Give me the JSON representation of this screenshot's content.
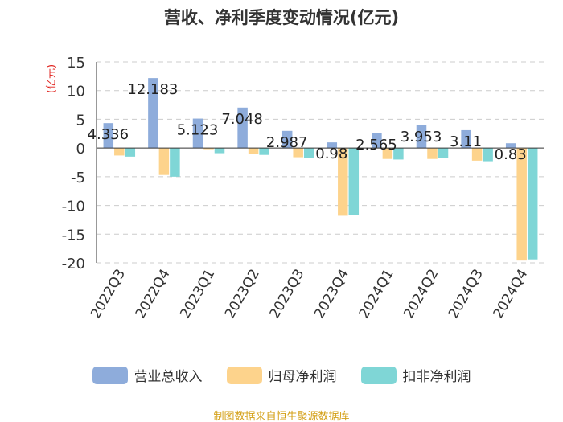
{
  "chart_data": {
    "type": "bar",
    "title": "营收、净利季度变动情况(亿元)",
    "ylabel": "(亿元)",
    "xlabel": "",
    "ylim": [
      -20,
      15
    ],
    "yticks": [
      15,
      10,
      5,
      0,
      -5,
      -10,
      -15,
      -20
    ],
    "grid": true,
    "legend_position": "bottom",
    "categories": [
      "2022Q3",
      "2022Q4",
      "2023Q1",
      "2023Q2",
      "2023Q3",
      "2023Q4",
      "2024Q1",
      "2024Q2",
      "2024Q3",
      "2024Q4"
    ],
    "series": [
      {
        "name": "营业总收入",
        "color": "#8eacdb",
        "values": [
          4.336,
          12.183,
          5.123,
          7.048,
          2.987,
          0.98,
          2.565,
          3.953,
          3.11,
          0.83
        ]
      },
      {
        "name": "归母净利润",
        "color": "#fdd38c",
        "values": [
          -1.3,
          -4.7,
          -0.2,
          -1.1,
          -1.6,
          -11.8,
          -1.9,
          -1.9,
          -2.2,
          -19.6
        ]
      },
      {
        "name": "扣非净利润",
        "color": "#7fd6d6",
        "values": [
          -1.5,
          -5.0,
          -0.9,
          -1.2,
          -1.8,
          -11.7,
          -2.0,
          -1.7,
          -2.3,
          -19.4
        ]
      }
    ],
    "data_labels": [
      "4.336",
      "12.183",
      "5.123",
      "7.048",
      "2.987",
      "0.98",
      "2.565",
      "3.953",
      "3.11",
      "0.83"
    ]
  },
  "source": "制图数据来自恒生聚源数据库"
}
